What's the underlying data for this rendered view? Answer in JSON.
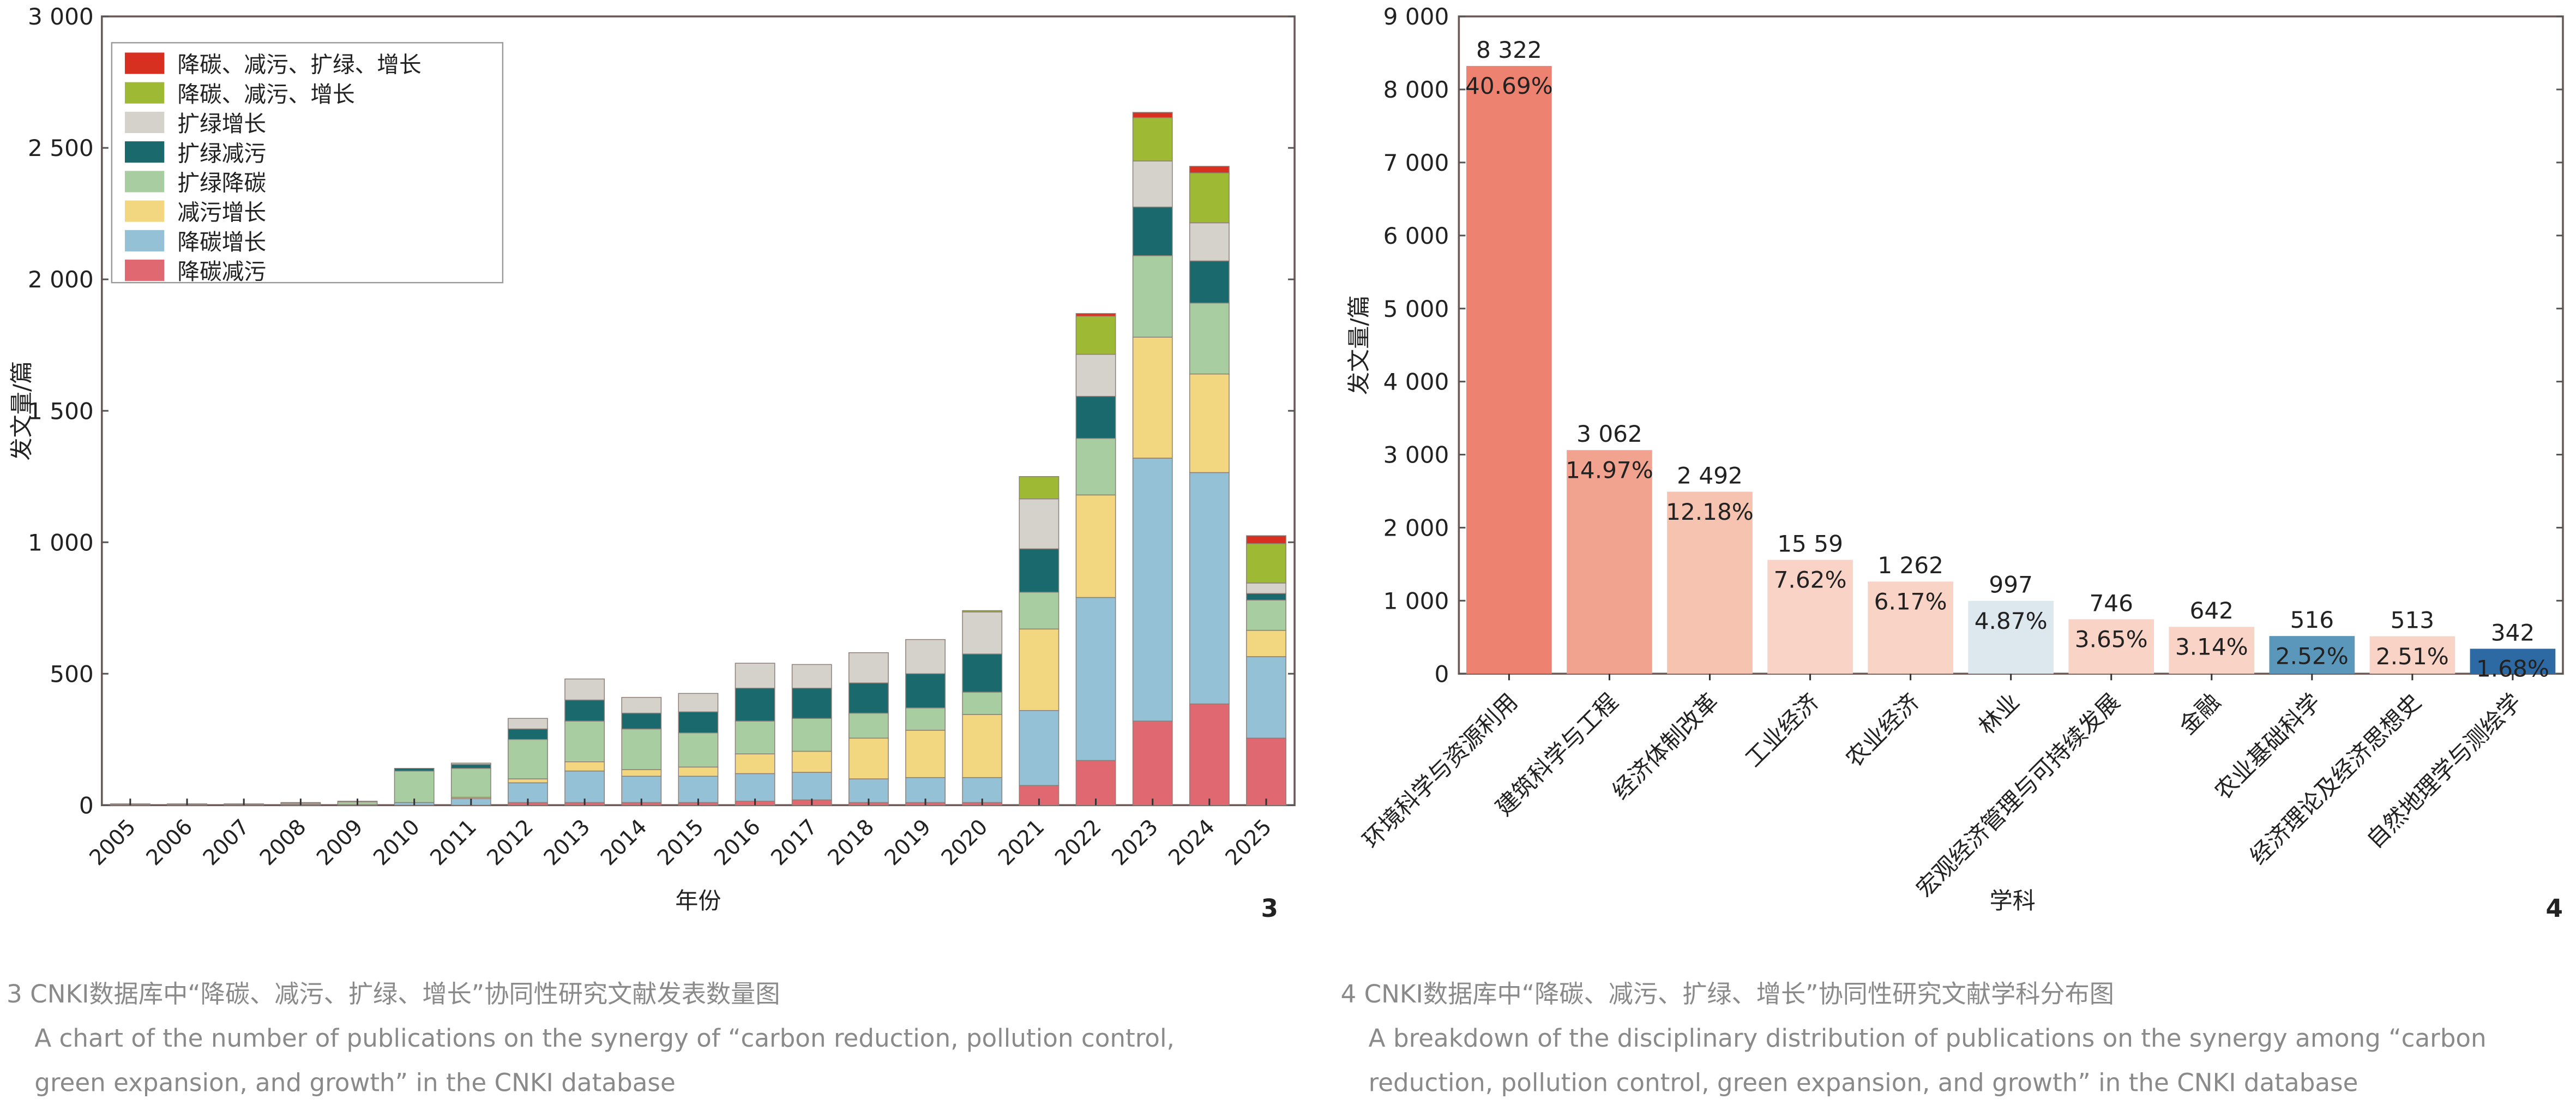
{
  "chart_data": [
    {
      "type": "bar",
      "stacked": true,
      "figure_number": "3",
      "xlabel": "年份",
      "ylabel": "发文量/篇",
      "ylim": [
        0,
        3000
      ],
      "yticks": [
        "0",
        "500",
        "1 000",
        "1 500",
        "2 000",
        "2 500",
        "3 000"
      ],
      "categories": [
        "2005",
        "2006",
        "2007",
        "2008",
        "2009",
        "2010",
        "2011",
        "2012",
        "2013",
        "2014",
        "2015",
        "2016",
        "2017",
        "2018",
        "2019",
        "2020",
        "2021",
        "2022",
        "2023",
        "2024",
        "2025"
      ],
      "legend_order": [
        "降碳、减污、扩绿、增长",
        "降碳、减污、增长",
        "扩绿增长",
        "扩绿减污",
        "扩绿降碳",
        "减污增长",
        "降碳增长",
        "降碳减污"
      ],
      "legend_position": "top-left",
      "series": [
        {
          "name": "降碳减污",
          "color": "#e06870",
          "values": [
            2,
            2,
            2,
            3,
            2,
            0,
            0,
            10,
            10,
            10,
            10,
            15,
            20,
            10,
            10,
            10,
            75,
            170,
            320,
            385,
            255
          ]
        },
        {
          "name": "降碳增长",
          "color": "#94c1d5",
          "values": [
            0,
            0,
            0,
            0,
            0,
            10,
            25,
            75,
            120,
            100,
            100,
            105,
            105,
            90,
            95,
            95,
            285,
            620,
            1000,
            880,
            310
          ]
        },
        {
          "name": "减污增长",
          "color": "#f2d680",
          "values": [
            0,
            0,
            0,
            0,
            0,
            0,
            5,
            15,
            35,
            25,
            35,
            75,
            80,
            155,
            180,
            240,
            310,
            390,
            460,
            375,
            100
          ]
        },
        {
          "name": "扩绿降碳",
          "color": "#a8cda0",
          "values": [
            2,
            2,
            2,
            5,
            11,
            120,
            110,
            150,
            155,
            155,
            130,
            125,
            125,
            95,
            85,
            85,
            140,
            215,
            310,
            270,
            115
          ]
        },
        {
          "name": "扩绿减污",
          "color": "#1a6a6d",
          "values": [
            1,
            1,
            1,
            2,
            2,
            10,
            15,
            40,
            80,
            60,
            80,
            125,
            115,
            115,
            130,
            145,
            165,
            160,
            185,
            160,
            25
          ]
        },
        {
          "name": "扩绿增长",
          "color": "#d5d2cc",
          "values": [
            0,
            0,
            0,
            0,
            0,
            0,
            5,
            40,
            80,
            60,
            70,
            95,
            90,
            115,
            130,
            160,
            190,
            160,
            175,
            145,
            40
          ]
        },
        {
          "name": "降碳、减污、增长",
          "color": "#9eba34",
          "values": [
            0,
            0,
            0,
            0,
            0,
            0,
            0,
            0,
            0,
            0,
            0,
            0,
            0,
            0,
            0,
            5,
            85,
            145,
            165,
            190,
            150
          ]
        },
        {
          "name": "降碳、减污、扩绿、增长",
          "color": "#d83020",
          "values": [
            0,
            0,
            0,
            0,
            0,
            0,
            0,
            0,
            0,
            0,
            0,
            0,
            0,
            0,
            0,
            0,
            0,
            10,
            20,
            25,
            30
          ]
        }
      ]
    },
    {
      "type": "bar",
      "figure_number": "4",
      "xlabel": "学科",
      "ylabel": "发文量/篇",
      "ylim": [
        0,
        9000
      ],
      "yticks": [
        "0",
        "1 000",
        "2 000",
        "3 000",
        "4 000",
        "5 000",
        "6 000",
        "7 000",
        "8 000",
        "9 000"
      ],
      "categories": [
        "环境科学与资源利用",
        "建筑科学与工程",
        "经济体制改革",
        "工业经济",
        "农业经济",
        "林业",
        "宏观经济管理与可持续发展",
        "金融",
        "农业基础科学",
        "经济理论及经济思想史",
        "自然地理学与测绘学"
      ],
      "values": [
        8322,
        3062,
        2492,
        1559,
        1262,
        997,
        746,
        642,
        516,
        513,
        342
      ],
      "value_labels": [
        "8 322",
        "3 062",
        "2 492",
        "15 59",
        "1 262",
        "997",
        "746",
        "642",
        "516",
        "513",
        "342"
      ],
      "percent_labels": [
        "40.69%",
        "14.97%",
        "12.18%",
        "7.62%",
        "6.17%",
        "4.87%",
        "3.65%",
        "3.14%",
        "2.52%",
        "2.51%",
        "1.68%"
      ],
      "colors": [
        "#ee8270",
        "#f2a38f",
        "#f6c3b0",
        "#f9d4c6",
        "#f9d4c6",
        "#dde7ee",
        "#f9d4c6",
        "#f9d4c6",
        "#5b97bb",
        "#f9d4c6",
        "#2d69a3"
      ]
    }
  ],
  "captions": {
    "fig3_cn": "3 CNKI数据库中“降碳、减污、扩绿、增长”协同性研究文献发表数量图",
    "fig3_en_1": "A chart of the number of publications on the synergy of “carbon reduction, pollution control,",
    "fig3_en_2": "green expansion, and growth” in the CNKI database",
    "fig4_cn": "4 CNKI数据库中“降碳、减污、扩绿、增长”协同性研究文献学科分布图",
    "fig4_en_1": "A breakdown of the disciplinary distribution of publications on the synergy among “carbon",
    "fig4_en_2": "reduction, pollution control, green expansion, and growth” in the CNKI database"
  }
}
